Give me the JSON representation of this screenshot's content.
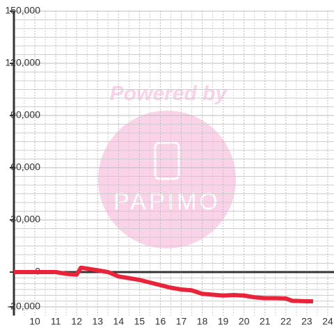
{
  "chart_data": {
    "type": "line",
    "watermark": {
      "text": "Powered by",
      "logo": "PAPIMO"
    },
    "x": [
      9,
      10,
      11,
      11.5,
      12,
      12.2,
      12.5,
      13,
      13.5,
      14,
      14.5,
      15,
      15.5,
      16,
      16.5,
      17,
      17.5,
      18,
      18.5,
      19,
      19.5,
      20,
      20.5,
      21,
      21.5,
      22,
      22.3,
      23,
      23.3
    ],
    "series": [
      {
        "color": "#e8233a",
        "values": [
          0,
          0,
          0,
          -1000,
          -1500,
          2500,
          2000,
          1000,
          0,
          -2500,
          -3500,
          -4500,
          -6000,
          -7500,
          -9000,
          -10000,
          -10500,
          -12500,
          -13000,
          -13500,
          -13200,
          -13500,
          -14500,
          -15000,
          -15000,
          -15200,
          -16500,
          -16800,
          -16800
        ]
      }
    ],
    "xlim": [
      9,
      24.3
    ],
    "xticks": [
      10,
      11,
      12,
      13,
      14,
      15,
      16,
      17,
      18,
      19,
      20,
      21,
      22,
      23,
      24
    ],
    "ylim": [
      -25000,
      150000
    ],
    "yticks": [
      {
        "value": -20000,
        "label": "-20,000"
      },
      0,
      {
        "value": 30000,
        "label": "30,000"
      },
      {
        "value": 60000,
        "label": "60,000"
      },
      {
        "value": 90000,
        "label": "90,000"
      },
      {
        "value": 120000,
        "label": "120,000"
      },
      {
        "value": 150000,
        "label": "150,000"
      }
    ],
    "grid": true
  }
}
